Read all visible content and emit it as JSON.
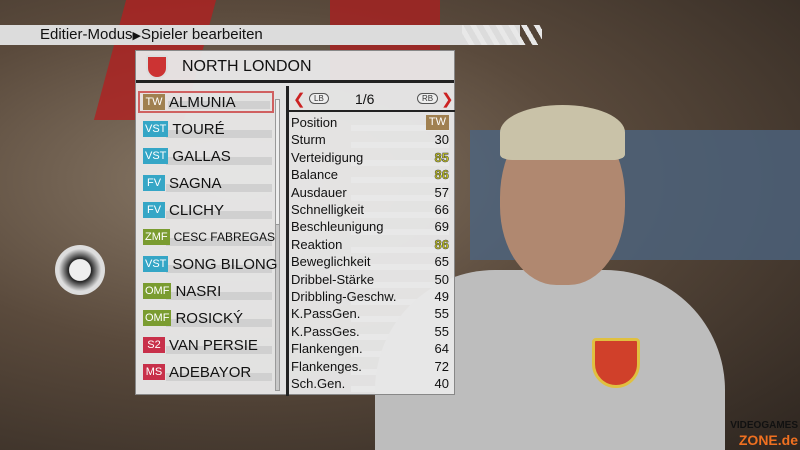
{
  "breadcrumb": {
    "mode": "Editier-Modus",
    "separator": "▶",
    "page": "Spieler bearbeiten"
  },
  "team": {
    "name": "NORTH LONDON"
  },
  "colors": {
    "TW": "#a08050",
    "VST": "#35a6c6",
    "FV": "#35a6c6",
    "ZMF": "#7a9c30",
    "OMF": "#7a9c30",
    "S2": "#c8304a",
    "MS": "#c8304a",
    "highlight": "#c8c820"
  },
  "players": [
    {
      "pos": "TW",
      "name": "ALMUNIA"
    },
    {
      "pos": "VST",
      "name": "TOURÉ"
    },
    {
      "pos": "VST",
      "name": "GALLAS"
    },
    {
      "pos": "FV",
      "name": "SAGNA"
    },
    {
      "pos": "FV",
      "name": "CLICHY"
    },
    {
      "pos": "ZMF",
      "name": "CESC FABREGAS"
    },
    {
      "pos": "VST",
      "name": "SONG BILONG"
    },
    {
      "pos": "OMF",
      "name": "NASRI"
    },
    {
      "pos": "OMF",
      "name": "ROSICKÝ"
    },
    {
      "pos": "S2",
      "name": "VAN PERSIE"
    },
    {
      "pos": "MS",
      "name": "ADEBAYOR"
    }
  ],
  "selected_player": 0,
  "pager": {
    "prev": "LB",
    "page": "1/6",
    "next": "RB"
  },
  "stats": [
    {
      "label": "Position",
      "value": "TW"
    },
    {
      "label": "Sturm",
      "value": "30"
    },
    {
      "label": "Verteidigung",
      "value": "85",
      "hi": true
    },
    {
      "label": "Balance",
      "value": "86",
      "hi": true
    },
    {
      "label": "Ausdauer",
      "value": "57"
    },
    {
      "label": "Schnelligkeit",
      "value": "66"
    },
    {
      "label": "Beschleunigung",
      "value": "69"
    },
    {
      "label": "Reaktion",
      "value": "86",
      "hi": true
    },
    {
      "label": "Beweglichkeit",
      "value": "65"
    },
    {
      "label": "Dribbel-Stärke",
      "value": "50"
    },
    {
      "label": "Dribbling-Geschw.",
      "value": "49"
    },
    {
      "label": "K.PassGen.",
      "value": "55"
    },
    {
      "label": "K.PassGes.",
      "value": "55"
    },
    {
      "label": "Flankengen.",
      "value": "64"
    },
    {
      "label": "Flankenges.",
      "value": "72"
    },
    {
      "label": "Sch.Gen.",
      "value": "40"
    }
  ],
  "watermark": {
    "line1": "VIDEOGAMES",
    "line2": "ZONE.de"
  }
}
